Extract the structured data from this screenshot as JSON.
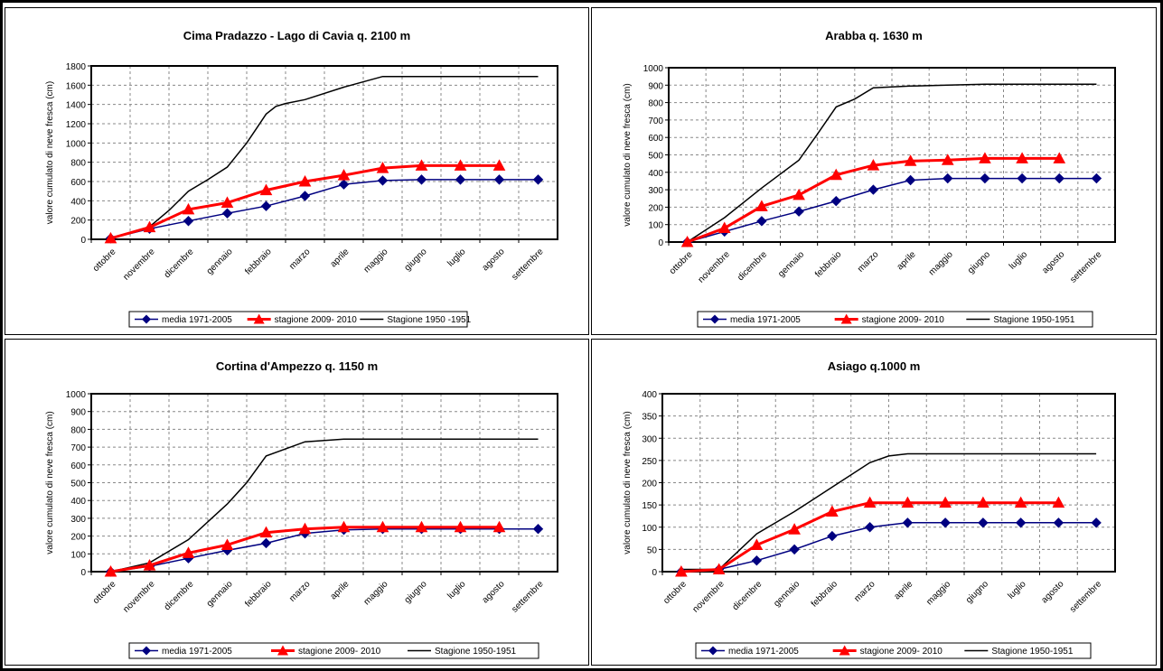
{
  "chart_data": [
    {
      "type": "line",
      "title": "Cima Pradazzo - Lago di Cavia q. 2100 m",
      "ylabel": "valore cumulato di neve fresca (cm)",
      "categories": [
        "ottobre",
        "novembre",
        "dicembre",
        "gennaio",
        "febbraio",
        "marzo",
        "aprile",
        "maggio",
        "giugno",
        "luglio",
        "agosto",
        "settembre"
      ],
      "ylim": [
        0,
        1800
      ],
      "yticks": [
        0,
        200,
        400,
        600,
        800,
        1000,
        1200,
        1400,
        1600,
        1800
      ],
      "grid": true,
      "legend": "bottom",
      "series": [
        {
          "name": "media  1971-2005",
          "color": "#000080",
          "marker": "diamond",
          "x": [
            0,
            1,
            2,
            3,
            4,
            5,
            6,
            7,
            8,
            9,
            10,
            11
          ],
          "values": [
            10,
            110,
            190,
            270,
            345,
            450,
            570,
            610,
            620,
            620,
            620,
            620
          ]
        },
        {
          "name": "stagione 2009- 2010",
          "color": "#ff0000",
          "marker": "triangle",
          "x": [
            0,
            1,
            2,
            3,
            4,
            5,
            6,
            7,
            8,
            9,
            10
          ],
          "values": [
            10,
            125,
            310,
            380,
            510,
            600,
            665,
            740,
            765,
            765,
            765
          ]
        },
        {
          "name": "Stagione 1950 -1951",
          "color": "#000000",
          "marker": "none",
          "x": [
            0,
            1,
            1.5,
            2,
            2.5,
            3,
            3.5,
            3.75,
            4,
            4.25,
            4.5,
            5,
            6,
            7,
            7.5,
            8,
            9,
            10,
            11
          ],
          "values": [
            10,
            130,
            300,
            500,
            620,
            750,
            1000,
            1150,
            1300,
            1380,
            1410,
            1450,
            1580,
            1690,
            1690,
            1690,
            1690,
            1690,
            1690
          ]
        }
      ]
    },
    {
      "type": "line",
      "title": "Arabba q. 1630 m",
      "ylabel": "valore cumulato di neve fresca (cm)",
      "categories": [
        "ottobre",
        "novembre",
        "dicembre",
        "gennaio",
        "febbraio",
        "marzo",
        "aprile",
        "maggio",
        "giugno",
        "luglio",
        "agosto",
        "settembre"
      ],
      "ylim": [
        0,
        1000
      ],
      "yticks": [
        0,
        100,
        200,
        300,
        400,
        500,
        600,
        700,
        800,
        900,
        1000
      ],
      "grid": true,
      "legend": "bottom",
      "series": [
        {
          "name": "media  1971-2005",
          "color": "#000080",
          "marker": "diamond",
          "x": [
            0,
            1,
            2,
            3,
            4,
            5,
            6,
            7,
            8,
            9,
            10,
            11
          ],
          "values": [
            0,
            60,
            120,
            175,
            235,
            300,
            355,
            365,
            365,
            365,
            365,
            365
          ]
        },
        {
          "name": "stagione 2009- 2010",
          "color": "#ff0000",
          "marker": "triangle",
          "x": [
            0,
            1,
            2,
            3,
            4,
            5,
            6,
            7,
            8,
            9,
            10
          ],
          "values": [
            0,
            80,
            205,
            270,
            385,
            440,
            465,
            470,
            480,
            480,
            480
          ]
        },
        {
          "name": "Stagione 1950-1951",
          "color": "#000000",
          "marker": "none",
          "x": [
            0,
            1,
            2,
            3,
            3.5,
            4,
            4.5,
            5,
            6,
            7,
            8,
            9,
            10,
            11
          ],
          "values": [
            0,
            140,
            310,
            470,
            620,
            775,
            820,
            885,
            895,
            900,
            905,
            905,
            905,
            905
          ]
        }
      ]
    },
    {
      "type": "line",
      "title": "Cortina d'Ampezzo q. 1150 m",
      "ylabel": "valore cumulato di neve fresca (cm)",
      "categories": [
        "ottobre",
        "novembre",
        "dicembre",
        "gennaio",
        "febbraio",
        "marzo",
        "aprile",
        "maggio",
        "giugno",
        "luglio",
        "agosto",
        "settembre"
      ],
      "ylim": [
        0,
        1000
      ],
      "yticks": [
        0,
        100,
        200,
        300,
        400,
        500,
        600,
        700,
        800,
        900,
        1000
      ],
      "grid": true,
      "legend": "bottom",
      "series": [
        {
          "name": "media  1971-2005",
          "color": "#000080",
          "marker": "diamond",
          "x": [
            0,
            1,
            2,
            3,
            4,
            5,
            6,
            7,
            8,
            9,
            10,
            11
          ],
          "values": [
            0,
            30,
            75,
            120,
            160,
            215,
            235,
            240,
            240,
            240,
            240,
            240
          ]
        },
        {
          "name": "stagione 2009- 2010",
          "color": "#ff0000",
          "marker": "triangle",
          "x": [
            0,
            1,
            2,
            3,
            4,
            5,
            6,
            7,
            8,
            9,
            10
          ],
          "values": [
            0,
            35,
            105,
            150,
            220,
            240,
            250,
            250,
            250,
            250,
            250
          ]
        },
        {
          "name": "Stagione 1950-1951",
          "color": "#000000",
          "marker": "none",
          "x": [
            0,
            1,
            2,
            3,
            3.5,
            4,
            4.5,
            5,
            6,
            7,
            8,
            9,
            10,
            11
          ],
          "values": [
            0,
            50,
            180,
            380,
            500,
            650,
            690,
            730,
            745,
            745,
            745,
            745,
            745,
            745
          ]
        }
      ]
    },
    {
      "type": "line",
      "title": "Asiago q.1000 m",
      "ylabel": "valore cumulato di neve fresca (cm)",
      "categories": [
        "ottobre",
        "novembre",
        "dicembre",
        "gennaio",
        "febbraio",
        "marzo",
        "aprile",
        "maggio",
        "giugno",
        "luglio",
        "agosto",
        "settembre"
      ],
      "ylim": [
        0,
        400
      ],
      "yticks": [
        0,
        50,
        100,
        150,
        200,
        250,
        300,
        350,
        400
      ],
      "grid": true,
      "legend": "bottom",
      "series": [
        {
          "name": "media  1971-2005",
          "color": "#000080",
          "marker": "diamond",
          "x": [
            0,
            1,
            2,
            3,
            4,
            5,
            6,
            7,
            8,
            9,
            10,
            11
          ],
          "values": [
            0,
            5,
            25,
            50,
            80,
            100,
            110,
            110,
            110,
            110,
            110,
            110
          ]
        },
        {
          "name": "stagione 2009- 2010",
          "color": "#ff0000",
          "marker": "triangle",
          "x": [
            0,
            1,
            2,
            3,
            4,
            5,
            6,
            7,
            8,
            9,
            10
          ],
          "values": [
            0,
            5,
            60,
            95,
            135,
            155,
            155,
            155,
            155,
            155,
            155
          ]
        },
        {
          "name": "Stagione 1950-1951",
          "color": "#000000",
          "marker": "none",
          "x": [
            0,
            1,
            1.5,
            2,
            3,
            4,
            5,
            5.5,
            6,
            7,
            8,
            9,
            10,
            11
          ],
          "values": [
            5,
            5,
            45,
            85,
            135,
            190,
            245,
            260,
            265,
            265,
            265,
            265,
            265,
            265
          ]
        }
      ]
    }
  ]
}
